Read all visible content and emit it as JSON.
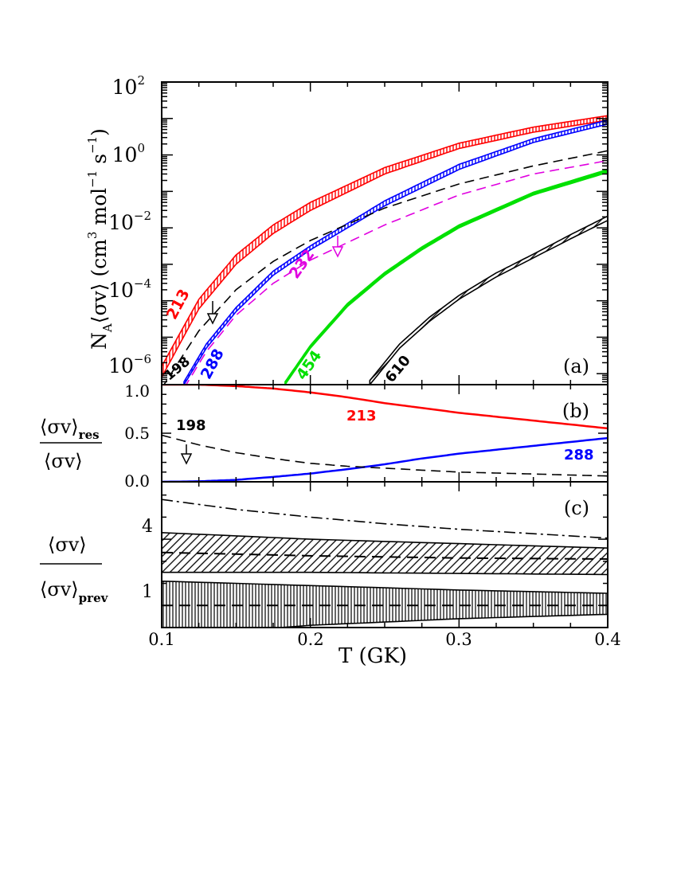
{
  "chart_data": [
    {
      "panel": "a",
      "type": "line",
      "panel_label": "(a)",
      "xlim": [
        0.1,
        0.4
      ],
      "ylim": [
        5e-07,
        100
      ],
      "yscale": "log",
      "ylabel": {
        "pre": "N",
        "sub": "A",
        "sym": "⟨σv⟩",
        "units": "(cm",
        "u1": "3",
        "mol": "mol",
        "u2": "−1",
        "s": "s",
        "u3": "−1",
        "close": ")"
      },
      "ytick_labels": [
        {
          "value": 1e-06,
          "base": "10",
          "exp": "−6"
        },
        {
          "value": 0.0001,
          "base": "10",
          "exp": "−4"
        },
        {
          "value": 0.01,
          "base": "10",
          "exp": "−2"
        },
        {
          "value": 1,
          "base": "10",
          "exp": "0"
        },
        {
          "value": 100,
          "base": "10",
          "exp": "2"
        }
      ],
      "series": [
        {
          "name": "213",
          "color": "#ff0000",
          "style": "band",
          "hatch": "vertical",
          "x": [
            0.1,
            0.125,
            0.15,
            0.175,
            0.2,
            0.25,
            0.3,
            0.35,
            0.4
          ],
          "lo": [
            8e-07,
            6e-05,
            0.001,
            0.007,
            0.03,
            0.3,
            1.5,
            4.2,
            9
          ],
          "hi": [
            1.6e-06,
            0.00011,
            0.0018,
            0.012,
            0.05,
            0.45,
            2.1,
            5.8,
            12
          ]
        },
        {
          "name": "288",
          "color": "#0000ff",
          "style": "band",
          "hatch": "vertical",
          "x": [
            0.115,
            0.13,
            0.15,
            0.175,
            0.2,
            0.25,
            0.3,
            0.35,
            0.4
          ],
          "lo": [
            5e-07,
            5e-06,
            5e-05,
            0.0005,
            0.0025,
            0.04,
            0.4,
            2.2,
            7
          ],
          "hi": [
            6e-07,
            6.5e-06,
            6.5e-05,
            0.00065,
            0.0032,
            0.055,
            0.55,
            2.8,
            9
          ]
        },
        {
          "name": "454",
          "color": "#00e000",
          "style": "band",
          "hatch": "solid",
          "x": [
            0.183,
            0.2,
            0.225,
            0.25,
            0.275,
            0.3,
            0.35,
            0.4
          ],
          "lo": [
            5e-07,
            5e-06,
            7e-05,
            0.0005,
            0.0025,
            0.01,
            0.08,
            0.33
          ],
          "hi": [
            6e-07,
            6e-06,
            8.5e-05,
            0.0006,
            0.003,
            0.012,
            0.095,
            0.4
          ]
        },
        {
          "name": "610",
          "color": "#000000",
          "style": "band",
          "hatch": "diagonal",
          "x": [
            0.24,
            0.26,
            0.28,
            0.3,
            0.325,
            0.35,
            0.375,
            0.4
          ],
          "lo": [
            5e-07,
            5e-06,
            2.7e-05,
            0.00011,
            0.00045,
            0.0015,
            0.005,
            0.016
          ],
          "hi": [
            6.5e-07,
            6.5e-06,
            3.5e-05,
            0.00014,
            0.00058,
            0.0019,
            0.0065,
            0.021
          ]
        },
        {
          "name": "198",
          "color": "#000000",
          "style": "dashed",
          "upper_limit": true,
          "x": [
            0.1,
            0.125,
            0.15,
            0.175,
            0.2,
            0.25,
            0.3,
            0.35,
            0.4
          ],
          "y": [
            4e-07,
            1.5e-05,
            0.0002,
            0.0012,
            0.0045,
            0.035,
            0.16,
            0.5,
            1.3
          ]
        },
        {
          "name": "232",
          "color": "#e000e0",
          "style": "dashed",
          "upper_limit": true,
          "x": [
            0.115,
            0.13,
            0.15,
            0.175,
            0.2,
            0.25,
            0.3,
            0.35,
            0.4
          ],
          "y": [
            4e-07,
            4e-06,
            4e-05,
            0.0003,
            0.0013,
            0.012,
            0.08,
            0.3,
            0.7
          ]
        }
      ]
    },
    {
      "panel": "b",
      "type": "line",
      "panel_label": "(b)",
      "xlim": [
        0.1,
        0.4
      ],
      "ylim": [
        0,
        1
      ],
      "ylabel": {
        "num": "⟨σv⟩",
        "num_sub": "res",
        "den": "⟨σv⟩"
      },
      "ytick_labels": [
        {
          "value": 0.0,
          "text": "0.0"
        },
        {
          "value": 0.5,
          "text": "0.5"
        },
        {
          "value": 1.0,
          "text": "1.0"
        }
      ],
      "series": [
        {
          "name": "213",
          "color": "#ff0000",
          "style": "solid",
          "x": [
            0.1,
            0.125,
            0.15,
            0.175,
            0.2,
            0.225,
            0.25,
            0.275,
            0.3,
            0.325,
            0.35,
            0.375,
            0.4
          ],
          "y": [
            1.0,
            1.0,
            0.985,
            0.96,
            0.92,
            0.87,
            0.81,
            0.76,
            0.71,
            0.67,
            0.63,
            0.59,
            0.55
          ]
        },
        {
          "name": "288",
          "color": "#0000ff",
          "style": "solid",
          "x": [
            0.1,
            0.125,
            0.15,
            0.175,
            0.2,
            0.225,
            0.25,
            0.275,
            0.3,
            0.325,
            0.35,
            0.375,
            0.4
          ],
          "y": [
            0.0,
            0.005,
            0.02,
            0.05,
            0.085,
            0.13,
            0.18,
            0.24,
            0.29,
            0.33,
            0.37,
            0.41,
            0.45
          ]
        },
        {
          "name": "198",
          "color": "#000000",
          "style": "dashed",
          "upper_limit": true,
          "x": [
            0.1,
            0.125,
            0.15,
            0.175,
            0.2,
            0.225,
            0.25,
            0.275,
            0.3,
            0.325,
            0.35,
            0.375,
            0.4
          ],
          "y": [
            0.48,
            0.38,
            0.3,
            0.24,
            0.19,
            0.16,
            0.14,
            0.12,
            0.1,
            0.09,
            0.08,
            0.07,
            0.06
          ]
        }
      ]
    },
    {
      "panel": "c",
      "type": "line",
      "panel_label": "(c)",
      "xlim": [
        0.1,
        0.4
      ],
      "ylim": [
        0,
        6.6
      ],
      "ylabel": {
        "num": "⟨σv⟩",
        "den": "⟨σv⟩",
        "den_sub": "prev"
      },
      "ytick_labels": [
        {
          "value": 1,
          "text": "1"
        },
        {
          "value": 4,
          "text": "4"
        }
      ],
      "series": [
        {
          "name": "ratio-1",
          "color": "#000000",
          "style": "band",
          "hatch": "vertical",
          "center_dashed": true,
          "x": [
            0.1,
            0.2,
            0.3,
            0.4
          ],
          "center": [
            1,
            1,
            1,
            1
          ],
          "lo": [
            -0.4,
            0.1,
            0.4,
            0.6
          ],
          "hi": [
            2.1,
            1.9,
            1.7,
            1.55
          ]
        },
        {
          "name": "ratio-4",
          "color": "#000000",
          "style": "band",
          "hatch": "diagonal",
          "center_dashed": true,
          "x": [
            0.1,
            0.2,
            0.3,
            0.4
          ],
          "center": [
            3.4,
            3.25,
            3.15,
            3.1
          ],
          "lo": [
            2.5,
            2.5,
            2.45,
            2.4
          ],
          "hi": [
            4.3,
            4.0,
            3.8,
            3.6
          ]
        },
        {
          "name": "upper",
          "color": "#000000",
          "style": "dashdot",
          "x": [
            0.1,
            0.15,
            0.2,
            0.25,
            0.3,
            0.35,
            0.4
          ],
          "y": [
            5.8,
            5.35,
            5.0,
            4.7,
            4.45,
            4.25,
            4.05
          ]
        }
      ]
    }
  ],
  "xaxis": {
    "label": "T (GK)",
    "tick_labels": [
      {
        "value": 0.1,
        "text": "0.1"
      },
      {
        "value": 0.2,
        "text": "0.2"
      },
      {
        "value": 0.3,
        "text": "0.3"
      },
      {
        "value": 0.4,
        "text": "0.4"
      }
    ]
  },
  "labels_a": {
    "l213": "213",
    "l198": "198",
    "l288": "288",
    "l232": "232",
    "l454": "454",
    "l610": "610"
  },
  "labels_b": {
    "l198": "198",
    "l213": "213",
    "l288": "288"
  }
}
